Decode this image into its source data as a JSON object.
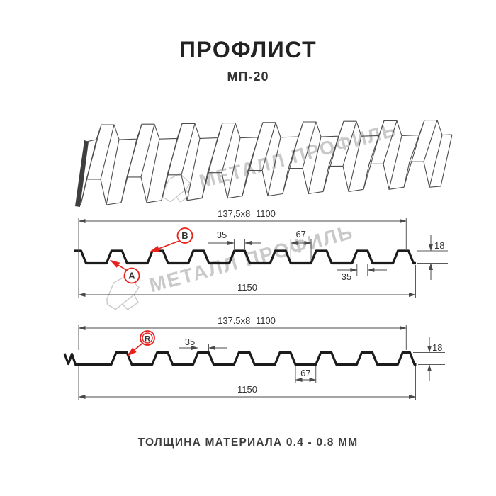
{
  "header": {
    "title": "ПРОФЛИСТ",
    "subtitle": "МП-20"
  },
  "footer": {
    "text": "ТОЛЩИНА МАТЕРИАЛА 0.4 - 0.8 ММ"
  },
  "watermark": {
    "brand": "МЕТАЛЛ ПРОФИЛЬ"
  },
  "colors": {
    "accent_red": "#e8211c",
    "drawing_line": "#1b1b1b",
    "dimension_line": "#4a4a4a",
    "watermark_gray": "#c9c9c9"
  },
  "section_top": {
    "module_dim": "137,5x8=1100",
    "crest_width": "35",
    "pan_width": "67",
    "profile_height": "18",
    "crest_width_bottom": "35",
    "full_width": "1150",
    "label_a": "A",
    "label_b": "B"
  },
  "section_bottom": {
    "module_dim": "137.5x8=1100",
    "crest_width": "35",
    "pan_width": "67",
    "profile_height": "18",
    "full_width": "1150",
    "label_r": "R"
  }
}
